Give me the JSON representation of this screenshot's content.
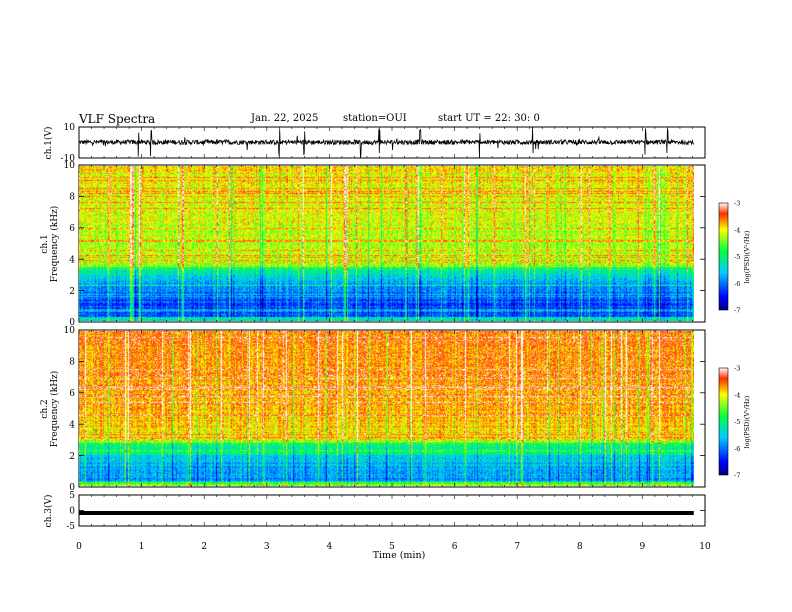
{
  "header": {
    "title": "VLF Spectra",
    "date": "Jan. 22, 2025",
    "station": "station=OUI",
    "start_ut": "start UT =  22: 30: 0"
  },
  "chart_data": [
    {
      "type": "line",
      "panel": "ch1-waveform",
      "ylabel": "ch.1(V)",
      "ylim": [
        -10,
        10
      ],
      "y_ticks": [
        "10",
        "-10"
      ],
      "x_range_min": [
        0,
        9.82
      ],
      "baseline_v": 0.2,
      "noise_amplitude_v": 1.5,
      "spike_times_min": [
        0.95,
        1.15,
        3.2,
        3.6,
        4.5,
        4.8,
        5.45,
        6.4,
        7.25,
        9.05,
        9.4
      ]
    },
    {
      "type": "heatmap",
      "panel": "ch1-spectrogram",
      "ylabel_line1": "ch.1",
      "ylabel_line2": "Frequency (kHz)",
      "ylim": [
        0,
        10
      ],
      "y_ticks": [
        "0",
        "2",
        "4",
        "6",
        "8",
        "10"
      ],
      "x_range_min": [
        0,
        9.82
      ],
      "colorbar": {
        "label": "log(PSD)(V²/Hz)",
        "range": [
          -7,
          -3
        ],
        "ticks": [
          "-3",
          "-4",
          "-5",
          "-6",
          "-7"
        ]
      },
      "description_levels": {
        "low_band_khz": [
          0,
          3.5
        ],
        "low_band_log_psd": -6.2,
        "high_band_log_psd": -4.3
      }
    },
    {
      "type": "heatmap",
      "panel": "ch2-spectrogram",
      "ylabel_line1": "ch.2",
      "ylabel_line2": "Frequency (kHz)",
      "ylim": [
        0,
        10
      ],
      "y_ticks": [
        "0",
        "2",
        "4",
        "6",
        "8",
        "10"
      ],
      "x_range_min": [
        0,
        9.82
      ],
      "colorbar": {
        "label": "log(PSD)(V²/Hz)",
        "range": [
          -7,
          -3
        ],
        "ticks": [
          "-3",
          "-4",
          "-5",
          "-6",
          "-7"
        ]
      },
      "description_levels": {
        "low_band_khz": [
          0,
          3
        ],
        "low_band_log_psd": -5.8,
        "high_band_log_psd": -3.9
      }
    },
    {
      "type": "line",
      "panel": "ch3-waveform",
      "ylabel": "ch.3(V)",
      "ylim": [
        -5,
        5
      ],
      "y_ticks": [
        "5",
        "0",
        "-5"
      ],
      "x_range_min": [
        0,
        9.82
      ],
      "constant_v": -0.8
    }
  ],
  "x_axis": {
    "label": "Time (min)",
    "ticks": [
      "0",
      "1",
      "2",
      "3",
      "4",
      "5",
      "6",
      "7",
      "8",
      "9",
      "10"
    ],
    "range": [
      0,
      10
    ]
  }
}
